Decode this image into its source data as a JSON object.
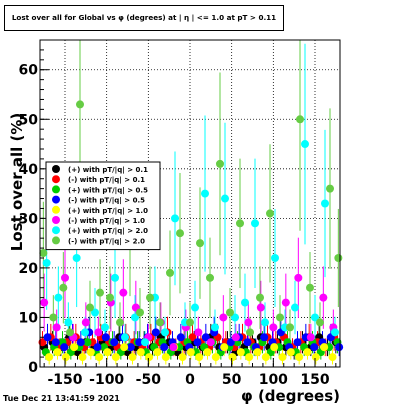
{
  "chart_data": {
    "type": "scatter",
    "title": "Lost over all for Global vs φ (degrees) at | η | <= 1.0 at pT > 0.11",
    "xlabel": "φ (degrees)",
    "ylabel": "Lost over all (%)",
    "xlim": [
      -180,
      180
    ],
    "ylim": [
      0,
      66
    ],
    "xticks": [
      -150,
      -100,
      -50,
      0,
      50,
      100,
      150
    ],
    "yticks": [
      0,
      10,
      20,
      30,
      40,
      50,
      60
    ],
    "grid": true,
    "legend_position": "center-left",
    "timestamp": "Tue Dec 21 13:41:59 2021",
    "series": [
      {
        "name": "(+) with pT/|q| > 0.1",
        "color": "#000000",
        "x": [
          -175,
          -165,
          -155,
          -145,
          -135,
          -125,
          -115,
          -105,
          -95,
          -85,
          -75,
          -65,
          -55,
          -45,
          -35,
          -25,
          -15,
          -5,
          5,
          15,
          25,
          35,
          45,
          55,
          65,
          75,
          85,
          95,
          105,
          115,
          125,
          135,
          145,
          155,
          165,
          175
        ],
        "y": [
          4,
          5,
          4,
          6,
          3,
          5,
          4,
          5,
          4,
          6,
          3,
          4,
          5,
          4,
          6,
          5,
          3,
          4,
          5,
          4,
          6,
          4,
          5,
          3,
          4,
          5,
          6,
          4,
          5,
          4,
          3,
          5,
          4,
          6,
          4,
          5
        ]
      },
      {
        "name": "(-) with pT/|q| > 0.1",
        "color": "#ff0000",
        "x": [
          -177,
          -167,
          -157,
          -147,
          -137,
          -127,
          -117,
          -107,
          -97,
          -87,
          -77,
          -67,
          -57,
          -47,
          -37,
          -27,
          -17,
          -7,
          3,
          13,
          23,
          33,
          43,
          53,
          63,
          73,
          83,
          93,
          103,
          113,
          123,
          133,
          143,
          153,
          163,
          173
        ],
        "y": [
          5,
          6,
          4,
          5,
          6,
          4,
          5,
          6,
          5,
          4,
          6,
          5,
          4,
          6,
          5,
          7,
          4,
          5,
          6,
          5,
          4,
          6,
          5,
          4,
          6,
          5,
          4,
          6,
          5,
          6,
          4,
          5,
          6,
          5,
          4,
          6
        ]
      },
      {
        "name": "(+) with pT/|q| > 0.5",
        "color": "#00cc00",
        "x": [
          -173,
          -163,
          -153,
          -143,
          -133,
          -123,
          -113,
          -103,
          -93,
          -83,
          -73,
          -63,
          -53,
          -43,
          -33,
          -23,
          -13,
          -3,
          7,
          17,
          27,
          37,
          47,
          57,
          67,
          77,
          87,
          97,
          107,
          117,
          127,
          137,
          147,
          157,
          167,
          177
        ],
        "y": [
          3,
          4,
          5,
          3,
          4,
          5,
          3,
          4,
          5,
          3,
          4,
          5,
          3,
          4,
          5,
          3,
          4,
          5,
          3,
          4,
          5,
          3,
          4,
          5,
          3,
          4,
          5,
          3,
          4,
          5,
          3,
          4,
          5,
          3,
          4,
          5
        ]
      },
      {
        "name": "(-) with pT/|q| > 0.5",
        "color": "#0000ff",
        "x": [
          -171,
          -161,
          -151,
          -141,
          -131,
          -121,
          -111,
          -101,
          -91,
          -81,
          -71,
          -61,
          -51,
          -41,
          -31,
          -21,
          -11,
          -1,
          9,
          19,
          29,
          39,
          49,
          59,
          69,
          79,
          89,
          99,
          109,
          119,
          129,
          139,
          149,
          159,
          169,
          179
        ],
        "y": [
          6,
          5,
          4,
          6,
          5,
          7,
          4,
          6,
          5,
          6,
          4,
          5,
          6,
          7,
          4,
          5,
          6,
          4,
          5,
          6,
          7,
          4,
          5,
          6,
          5,
          4,
          6,
          5,
          7,
          4,
          5,
          6,
          4,
          5,
          6,
          4
        ]
      },
      {
        "name": "(+) with pT/|q| > 1.0",
        "color": "#ffff00",
        "x": [
          -169,
          -159,
          -149,
          -139,
          -129,
          -119,
          -109,
          -99,
          -89,
          -79,
          -69,
          -59,
          -49,
          -39,
          -29,
          -19,
          -9,
          1,
          11,
          21,
          31,
          41,
          51,
          61,
          71,
          81,
          91,
          101,
          111,
          121,
          131,
          141,
          151,
          161,
          171
        ],
        "y": [
          2,
          3,
          2,
          4,
          2,
          3,
          2,
          3,
          2,
          4,
          2,
          3,
          2,
          3,
          2,
          4,
          2,
          3,
          2,
          3,
          2,
          4,
          2,
          3,
          2,
          3,
          2,
          4,
          2,
          3,
          2,
          3,
          2,
          4,
          2
        ]
      },
      {
        "name": "(-) with pT/|q| > 1.0",
        "color": "#ff00ff",
        "x": [
          -175,
          -160,
          -150,
          -140,
          -125,
          -110,
          -95,
          -80,
          -65,
          -50,
          -35,
          -20,
          -5,
          10,
          25,
          40,
          55,
          70,
          85,
          100,
          115,
          130,
          145,
          160,
          172
        ],
        "y": [
          13,
          8,
          18,
          6,
          9,
          7,
          13,
          15,
          12,
          6,
          9,
          4,
          8,
          7,
          5,
          10,
          6,
          9,
          12,
          8,
          13,
          18,
          6,
          14,
          8
        ]
      },
      {
        "name": "(+) with pT/|q| > 2.0",
        "color": "#00ffff",
        "x": [
          -172,
          -158,
          -146,
          -136,
          -126,
          -114,
          -102,
          -90,
          -78,
          -66,
          -54,
          -42,
          -30,
          -18,
          -6,
          6,
          18,
          30,
          42,
          54,
          66,
          78,
          90,
          102,
          114,
          126,
          138,
          150,
          162,
          174
        ],
        "y": [
          21,
          14,
          9,
          22,
          7,
          11,
          8,
          18,
          6,
          10,
          5,
          14,
          7,
          30,
          9,
          12,
          35,
          8,
          34,
          10,
          13,
          29,
          9,
          22,
          8,
          12,
          45,
          10,
          33,
          7
        ]
      },
      {
        "name": "(-) with pT/|q| > 2.0",
        "color": "#66cc44",
        "x": [
          -176,
          -164,
          -152,
          -144,
          -132,
          -120,
          -108,
          -96,
          -84,
          -72,
          -60,
          -48,
          -36,
          -24,
          -12,
          0,
          12,
          24,
          36,
          48,
          60,
          72,
          84,
          96,
          108,
          120,
          132,
          144,
          156,
          168,
          178
        ],
        "y": [
          23,
          10,
          16,
          7,
          53,
          12,
          15,
          14,
          9,
          26,
          11,
          14,
          9,
          19,
          27,
          9,
          25,
          18,
          41,
          11,
          29,
          7,
          14,
          31,
          10,
          8,
          50,
          16,
          9,
          36,
          22
        ]
      }
    ]
  }
}
